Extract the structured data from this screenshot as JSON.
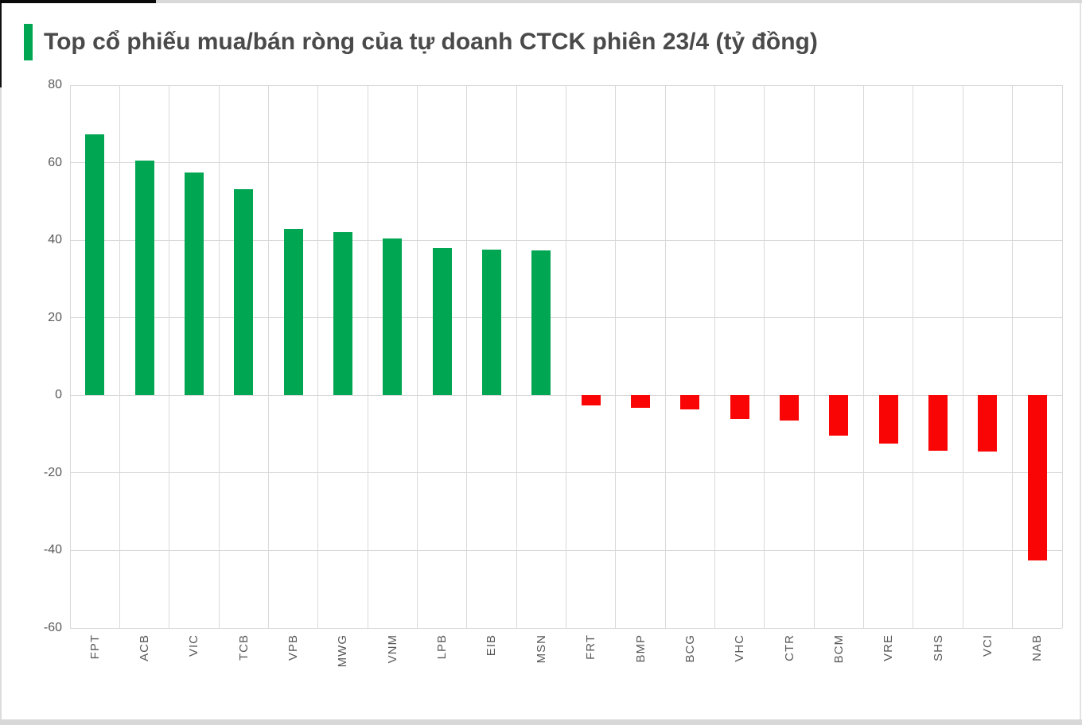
{
  "header": {
    "title": "Top cổ phiếu mua/bán ròng của tự doanh CTCK phiên 23/4 (tỷ đồng)"
  },
  "colors": {
    "positive_bar": "#00a651",
    "negative_bar": "#f90505",
    "accent": "#00a651",
    "grid": "#d9d9d9",
    "axis_text": "#595959",
    "title_text": "#4a4a4a"
  },
  "chart_data": {
    "type": "bar",
    "title": "Top cổ phiếu mua/bán ròng của tự doanh CTCK phiên 23/4 (tỷ đồng)",
    "categories": [
      "FPT",
      "ACB",
      "VIC",
      "TCB",
      "VPB",
      "MWG",
      "VNM",
      "LPB",
      "EIB",
      "MSN",
      "FRT",
      "BMP",
      "BCG",
      "VHC",
      "CTR",
      "BCM",
      "VRE",
      "SHS",
      "VCI",
      "NAB"
    ],
    "values": [
      67.3,
      60.5,
      57.5,
      53.2,
      42.8,
      42.0,
      40.4,
      37.9,
      37.6,
      37.3,
      -2.6,
      -3.2,
      -3.6,
      -6.0,
      -6.6,
      -10.4,
      -12.5,
      -14.2,
      -14.4,
      -42.5
    ],
    "xlabel": "",
    "ylabel": "",
    "ylim": [
      -60,
      80
    ],
    "yticks": [
      80,
      60,
      40,
      20,
      0,
      -20,
      -40,
      -60
    ],
    "grid": true,
    "legend_position": "none",
    "unit_note": "tỷ đồng"
  }
}
